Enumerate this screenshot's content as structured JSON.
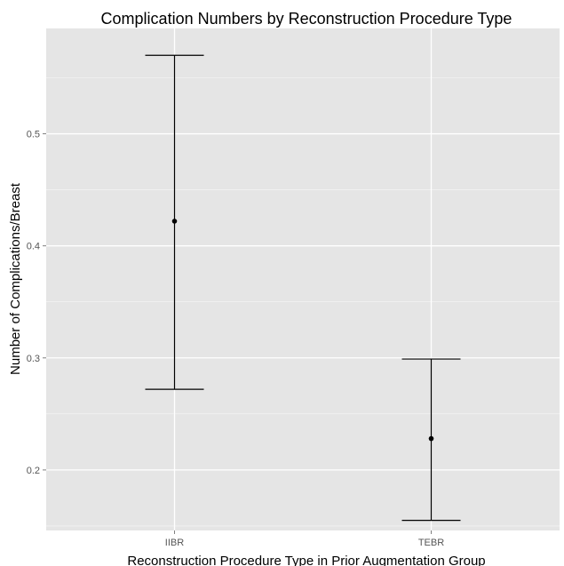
{
  "chart_data": {
    "type": "scatter",
    "title": "Complication Numbers by Reconstruction Procedure Type",
    "xlabel": "Reconstruction Procedure Type in Prior Augmentation Group",
    "ylabel": "Number of Complications/Breast",
    "categories": [
      "IIBR",
      "TEBR"
    ],
    "series": [
      {
        "points": [
          {
            "x": "IIBR",
            "y": 0.422,
            "lower": 0.272,
            "upper": 0.57
          },
          {
            "x": "TEBR",
            "y": 0.228,
            "lower": 0.155,
            "upper": 0.299
          }
        ]
      }
    ],
    "ylim": [
      0.146,
      0.594
    ],
    "yticks": [
      0.2,
      0.3,
      0.4,
      0.5
    ],
    "ytick_labels": [
      "0.2",
      "0.3",
      "0.4",
      "0.5"
    ],
    "grid": true,
    "colors": {
      "panel_background": "#e5e5e5",
      "grid_line": "#ffffff",
      "marks": "#000000"
    }
  }
}
